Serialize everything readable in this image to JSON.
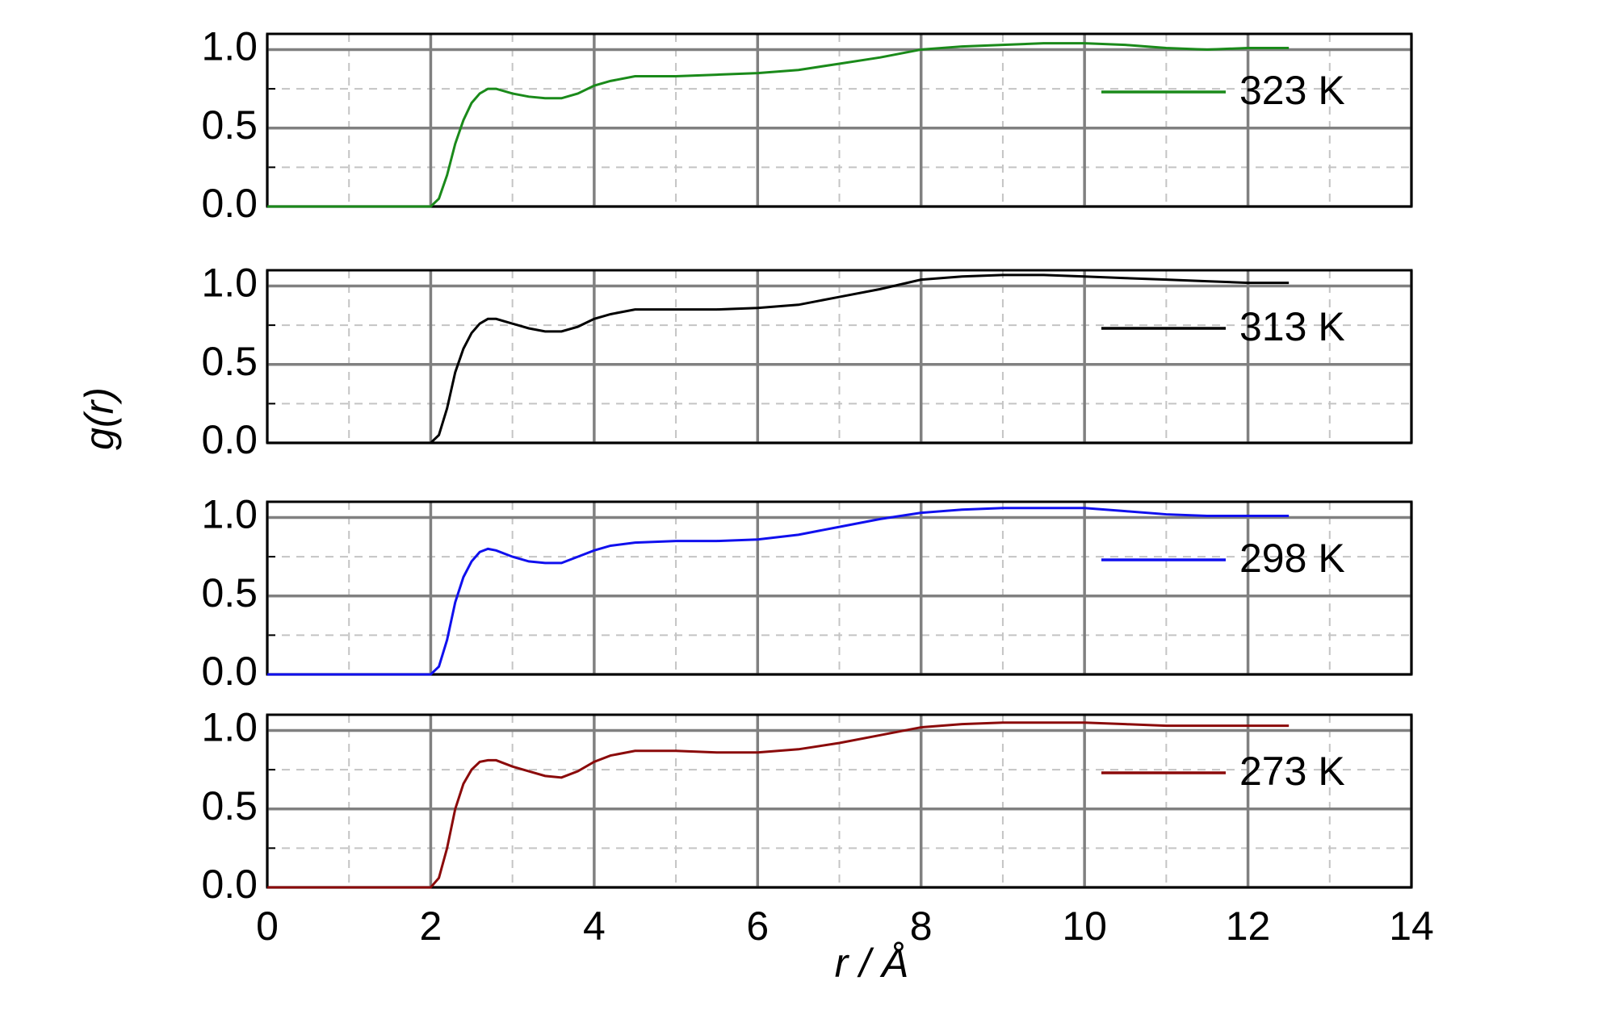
{
  "chart_data": [
    {
      "type": "line",
      "x": [
        0,
        0.5,
        1,
        1.5,
        2.0,
        2.1,
        2.2,
        2.3,
        2.4,
        2.5,
        2.6,
        2.7,
        2.8,
        3.0,
        3.2,
        3.4,
        3.6,
        3.8,
        4.0,
        4.2,
        4.5,
        5,
        5.5,
        6,
        6.5,
        7,
        7.5,
        8,
        8.5,
        9,
        9.5,
        10,
        10.5,
        11,
        11.5,
        12,
        12.5
      ],
      "series": [
        {
          "name": "323 K",
          "color": "#1a8a1a",
          "values": [
            0,
            0,
            0,
            0,
            0,
            0.05,
            0.2,
            0.4,
            0.55,
            0.66,
            0.72,
            0.75,
            0.75,
            0.72,
            0.7,
            0.69,
            0.69,
            0.72,
            0.77,
            0.8,
            0.83,
            0.83,
            0.84,
            0.85,
            0.87,
            0.91,
            0.95,
            1.0,
            1.02,
            1.03,
            1.04,
            1.04,
            1.03,
            1.01,
            1.0,
            1.01,
            1.01
          ]
        }
      ],
      "xlim": [
        0,
        14
      ],
      "xticks": [
        0,
        2,
        4,
        6,
        8,
        10,
        12,
        14
      ],
      "minor_xticks": [
        1,
        3,
        5,
        7,
        9,
        11,
        13
      ],
      "ylim": [
        0,
        1.1
      ],
      "yticks": [
        {
          "value": 0,
          "label": "0.0"
        },
        {
          "value": 0.5,
          "label": "0.5"
        },
        {
          "value": 1,
          "label": "1.0"
        }
      ],
      "minor_yticks": [
        0.25,
        0.75
      ],
      "grid": true
    },
    {
      "type": "line",
      "x": [
        0,
        0.5,
        1,
        1.5,
        2.0,
        2.1,
        2.2,
        2.3,
        2.4,
        2.5,
        2.6,
        2.7,
        2.8,
        3.0,
        3.2,
        3.4,
        3.6,
        3.8,
        4.0,
        4.2,
        4.5,
        5,
        5.5,
        6,
        6.5,
        7,
        7.5,
        8,
        8.5,
        9,
        9.5,
        10,
        10.5,
        11,
        11.5,
        12,
        12.5
      ],
      "series": [
        {
          "name": "313 K",
          "color": "#000000",
          "values": [
            0,
            0,
            0,
            0,
            0,
            0.05,
            0.22,
            0.45,
            0.6,
            0.7,
            0.76,
            0.79,
            0.79,
            0.76,
            0.73,
            0.71,
            0.71,
            0.74,
            0.79,
            0.82,
            0.85,
            0.85,
            0.85,
            0.86,
            0.88,
            0.93,
            0.98,
            1.04,
            1.06,
            1.07,
            1.07,
            1.06,
            1.05,
            1.04,
            1.03,
            1.02,
            1.02
          ]
        }
      ],
      "ylabel": "g(r)",
      "xlim": [
        0,
        14
      ],
      "xticks": [
        0,
        2,
        4,
        6,
        8,
        10,
        12,
        14
      ],
      "minor_xticks": [
        1,
        3,
        5,
        7,
        9,
        11,
        13
      ],
      "ylim": [
        0,
        1.1
      ],
      "yticks": [
        {
          "value": 0,
          "label": "0.0"
        },
        {
          "value": 0.5,
          "label": "0.5"
        },
        {
          "value": 1,
          "label": "1.0"
        }
      ],
      "minor_yticks": [
        0.25,
        0.75
      ],
      "grid": true
    },
    {
      "type": "line",
      "x": [
        0,
        0.5,
        1,
        1.5,
        2.0,
        2.1,
        2.2,
        2.3,
        2.4,
        2.5,
        2.6,
        2.7,
        2.8,
        3.0,
        3.2,
        3.4,
        3.6,
        3.8,
        4.0,
        4.2,
        4.5,
        5,
        5.5,
        6,
        6.5,
        7,
        7.5,
        8,
        8.5,
        9,
        9.5,
        10,
        10.5,
        11,
        11.5,
        12,
        12.5
      ],
      "series": [
        {
          "name": "298 K",
          "color": "#1010ee",
          "values": [
            0,
            0,
            0,
            0,
            0,
            0.05,
            0.22,
            0.46,
            0.62,
            0.72,
            0.78,
            0.8,
            0.79,
            0.75,
            0.72,
            0.71,
            0.71,
            0.75,
            0.79,
            0.82,
            0.84,
            0.85,
            0.85,
            0.86,
            0.89,
            0.94,
            0.99,
            1.03,
            1.05,
            1.06,
            1.06,
            1.06,
            1.04,
            1.02,
            1.01,
            1.01,
            1.01
          ]
        }
      ],
      "xlim": [
        0,
        14
      ],
      "xticks": [
        0,
        2,
        4,
        6,
        8,
        10,
        12,
        14
      ],
      "minor_xticks": [
        1,
        3,
        5,
        7,
        9,
        11,
        13
      ],
      "ylim": [
        0,
        1.1
      ],
      "yticks": [
        {
          "value": 0,
          "label": "0.0"
        },
        {
          "value": 0.5,
          "label": "0.5"
        },
        {
          "value": 1,
          "label": "1.0"
        }
      ],
      "minor_yticks": [
        0.25,
        0.75
      ],
      "grid": true
    },
    {
      "type": "line",
      "x": [
        0,
        0.5,
        1,
        1.5,
        2.0,
        2.1,
        2.2,
        2.3,
        2.4,
        2.5,
        2.6,
        2.7,
        2.8,
        3.0,
        3.2,
        3.4,
        3.6,
        3.8,
        4.0,
        4.2,
        4.5,
        5,
        5.5,
        6,
        6.5,
        7,
        7.5,
        8,
        8.5,
        9,
        9.5,
        10,
        10.5,
        11,
        11.5,
        12,
        12.5
      ],
      "series": [
        {
          "name": "273 K",
          "color": "#8b0a0a",
          "values": [
            0,
            0,
            0,
            0,
            0,
            0.06,
            0.25,
            0.5,
            0.66,
            0.75,
            0.8,
            0.81,
            0.81,
            0.77,
            0.74,
            0.71,
            0.7,
            0.74,
            0.8,
            0.84,
            0.87,
            0.87,
            0.86,
            0.86,
            0.88,
            0.92,
            0.97,
            1.02,
            1.04,
            1.05,
            1.05,
            1.05,
            1.04,
            1.03,
            1.03,
            1.03,
            1.03
          ]
        }
      ],
      "xlabel": "r / Å",
      "xlim": [
        0,
        14
      ],
      "xticks": [
        0,
        2,
        4,
        6,
        8,
        10,
        12,
        14
      ],
      "minor_xticks": [
        1,
        3,
        5,
        7,
        9,
        11,
        13
      ],
      "ylim": [
        0,
        1.1
      ],
      "yticks": [
        {
          "value": 0,
          "label": "0.0"
        },
        {
          "value": 0.5,
          "label": "0.5"
        },
        {
          "value": 1,
          "label": "1.0"
        }
      ],
      "minor_yticks": [
        0.25,
        0.75
      ],
      "grid": true
    }
  ]
}
